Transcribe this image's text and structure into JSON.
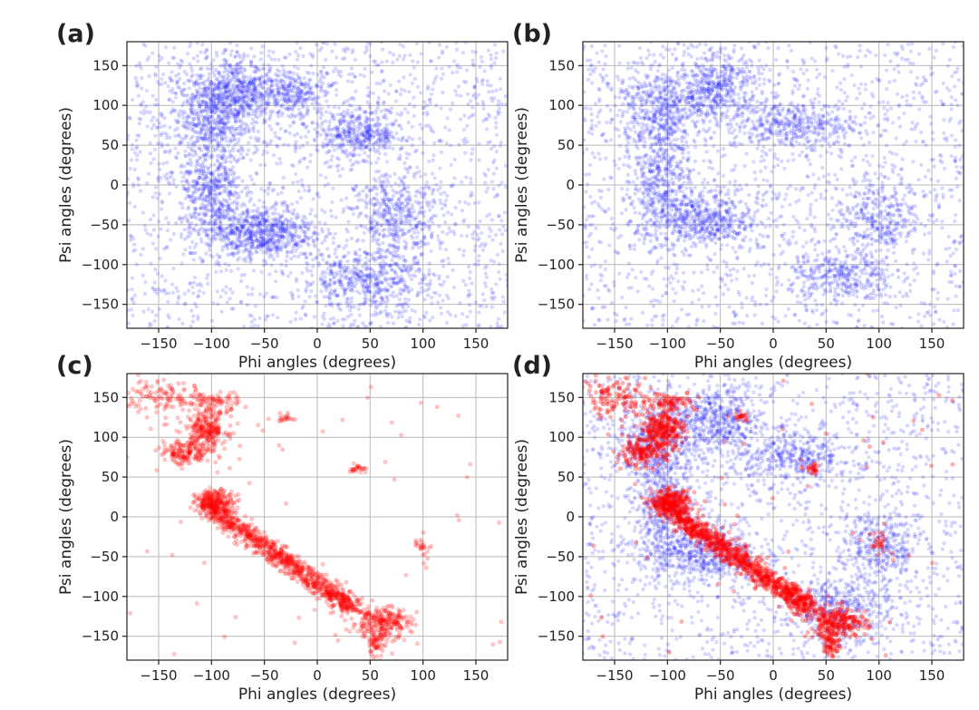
{
  "chart_data": [
    {
      "panel": "a",
      "type": "scatter",
      "xlabel": "Phi angles (degrees)",
      "ylabel": "Psi angles (degrees)",
      "xlim": [
        -180,
        180
      ],
      "ylim": [
        -180,
        180
      ],
      "xticks": [
        -150,
        -100,
        -50,
        0,
        50,
        100,
        150
      ],
      "yticks": [
        -150,
        -100,
        -50,
        0,
        50,
        100,
        150
      ],
      "xtick_labels": [
        "−150",
        "−100",
        "−50",
        "0",
        "50",
        "100",
        "150"
      ],
      "ytick_labels": [
        "−150",
        "−100",
        "−50",
        "0",
        "50",
        "100",
        "150"
      ],
      "grid": true,
      "series": [
        {
          "color": "#1a1aff",
          "background_points": 1700,
          "clusters": [
            {
              "x": -95,
              "y": 80,
              "sx": 22,
              "sy": 30,
              "n": 600
            },
            {
              "x": -75,
              "y": 120,
              "sx": 22,
              "sy": 20,
              "n": 450
            },
            {
              "x": -55,
              "y": -60,
              "sx": 25,
              "sy": 16,
              "n": 650
            },
            {
              "x": -100,
              "y": -15,
              "sx": 15,
              "sy": 30,
              "n": 420
            },
            {
              "x": 40,
              "y": 65,
              "sx": 22,
              "sy": 16,
              "n": 400
            },
            {
              "x": 75,
              "y": -40,
              "sx": 18,
              "sy": 28,
              "n": 380
            },
            {
              "x": 45,
              "y": -120,
              "sx": 30,
              "sy": 18,
              "n": 450
            },
            {
              "x": -20,
              "y": 115,
              "sx": 18,
              "sy": 15,
              "n": 250
            }
          ]
        }
      ]
    },
    {
      "panel": "b",
      "type": "scatter",
      "xlabel": "Phi angles (degrees)",
      "ylabel": "Psi angles (degrees)",
      "xlim": [
        -180,
        180
      ],
      "ylim": [
        -180,
        180
      ],
      "xticks": [
        -150,
        -100,
        -50,
        0,
        50,
        100,
        150
      ],
      "yticks": [
        -150,
        -100,
        -50,
        0,
        50,
        100,
        150
      ],
      "xtick_labels": [
        "−150",
        "−100",
        "−50",
        "0",
        "50",
        "100",
        "150"
      ],
      "ytick_labels": [
        "−150",
        "−100",
        "−50",
        "0",
        "50",
        "100",
        "150"
      ],
      "grid": true,
      "series": [
        {
          "color": "#1a1aff",
          "background_points": 1500,
          "clusters": [
            {
              "x": -110,
              "y": 95,
              "sx": 20,
              "sy": 25,
              "n": 420
            },
            {
              "x": -55,
              "y": 120,
              "sx": 22,
              "sy": 22,
              "n": 500
            },
            {
              "x": -105,
              "y": 15,
              "sx": 14,
              "sy": 30,
              "n": 380
            },
            {
              "x": -70,
              "y": -45,
              "sx": 28,
              "sy": 18,
              "n": 550
            },
            {
              "x": 20,
              "y": 75,
              "sx": 30,
              "sy": 15,
              "n": 380
            },
            {
              "x": 100,
              "y": -40,
              "sx": 20,
              "sy": 25,
              "n": 320
            },
            {
              "x": 65,
              "y": -115,
              "sx": 25,
              "sy": 18,
              "n": 350
            }
          ]
        }
      ]
    },
    {
      "panel": "c",
      "type": "scatter",
      "xlabel": "Phi angles (degrees)",
      "ylabel": "Psi angles (degrees)",
      "xlim": [
        -180,
        180
      ],
      "ylim": [
        -180,
        180
      ],
      "xticks": [
        -150,
        -100,
        -50,
        0,
        50,
        100,
        150
      ],
      "yticks": [
        -150,
        -100,
        -50,
        0,
        50,
        100,
        150
      ],
      "xtick_labels": [
        "−150",
        "−100",
        "−50",
        "0",
        "50",
        "100",
        "150"
      ],
      "ytick_labels": [
        "−150",
        "−100",
        "−50",
        "0",
        "50",
        "100",
        "150"
      ],
      "grid": true,
      "series": [
        {
          "color": "#ff0000",
          "background_points": 60,
          "clusters": [
            {
              "x": -105,
              "y": 110,
              "sx": 10,
              "sy": 12,
              "n": 260
            },
            {
              "x": -125,
              "y": 80,
              "sx": 12,
              "sy": 8,
              "n": 160
            },
            {
              "x": -150,
              "y": 150,
              "sx": 18,
              "sy": 14,
              "n": 120
            },
            {
              "x": -100,
              "y": 145,
              "sx": 14,
              "sy": 6,
              "n": 90
            },
            {
              "x": -97,
              "y": 17,
              "sx": 9,
              "sy": 8,
              "n": 300
            },
            {
              "x": -30,
              "y": 125,
              "sx": 4,
              "sy": 3,
              "n": 20
            },
            {
              "x": 38,
              "y": 60,
              "sx": 4,
              "sy": 3,
              "n": 25
            },
            {
              "x": 100,
              "y": -35,
              "sx": 4,
              "sy": 8,
              "n": 25
            },
            {
              "x": 60,
              "y": -133,
              "sx": 14,
              "sy": 10,
              "n": 260
            },
            {
              "x": 55,
              "y": -160,
              "sx": 4,
              "sy": 8,
              "n": 60
            },
            {
              "x": 25,
              "y": -105,
              "sx": 6,
              "sy": 6,
              "n": 40
            }
          ],
          "streaks": [
            {
              "x0": -95,
              "y0": 5,
              "x1": 35,
              "y1": -115,
              "width": 6,
              "n": 900
            }
          ]
        }
      ]
    },
    {
      "panel": "d",
      "type": "scatter",
      "xlabel": "Phi angles (degrees)",
      "ylabel": "Psi angles (degrees)",
      "xlim": [
        -180,
        180
      ],
      "ylim": [
        -180,
        180
      ],
      "xticks": [
        -150,
        -100,
        -50,
        0,
        50,
        100,
        150
      ],
      "yticks": [
        -150,
        -100,
        -50,
        0,
        50,
        100,
        150
      ],
      "xtick_labels": [
        "−150",
        "−100",
        "−50",
        "0",
        "50",
        "100",
        "150"
      ],
      "ytick_labels": [
        "−150",
        "−100",
        "−50",
        "0",
        "50",
        "100",
        "150"
      ],
      "grid": true,
      "overlay_of": [
        "b",
        "c"
      ]
    }
  ]
}
